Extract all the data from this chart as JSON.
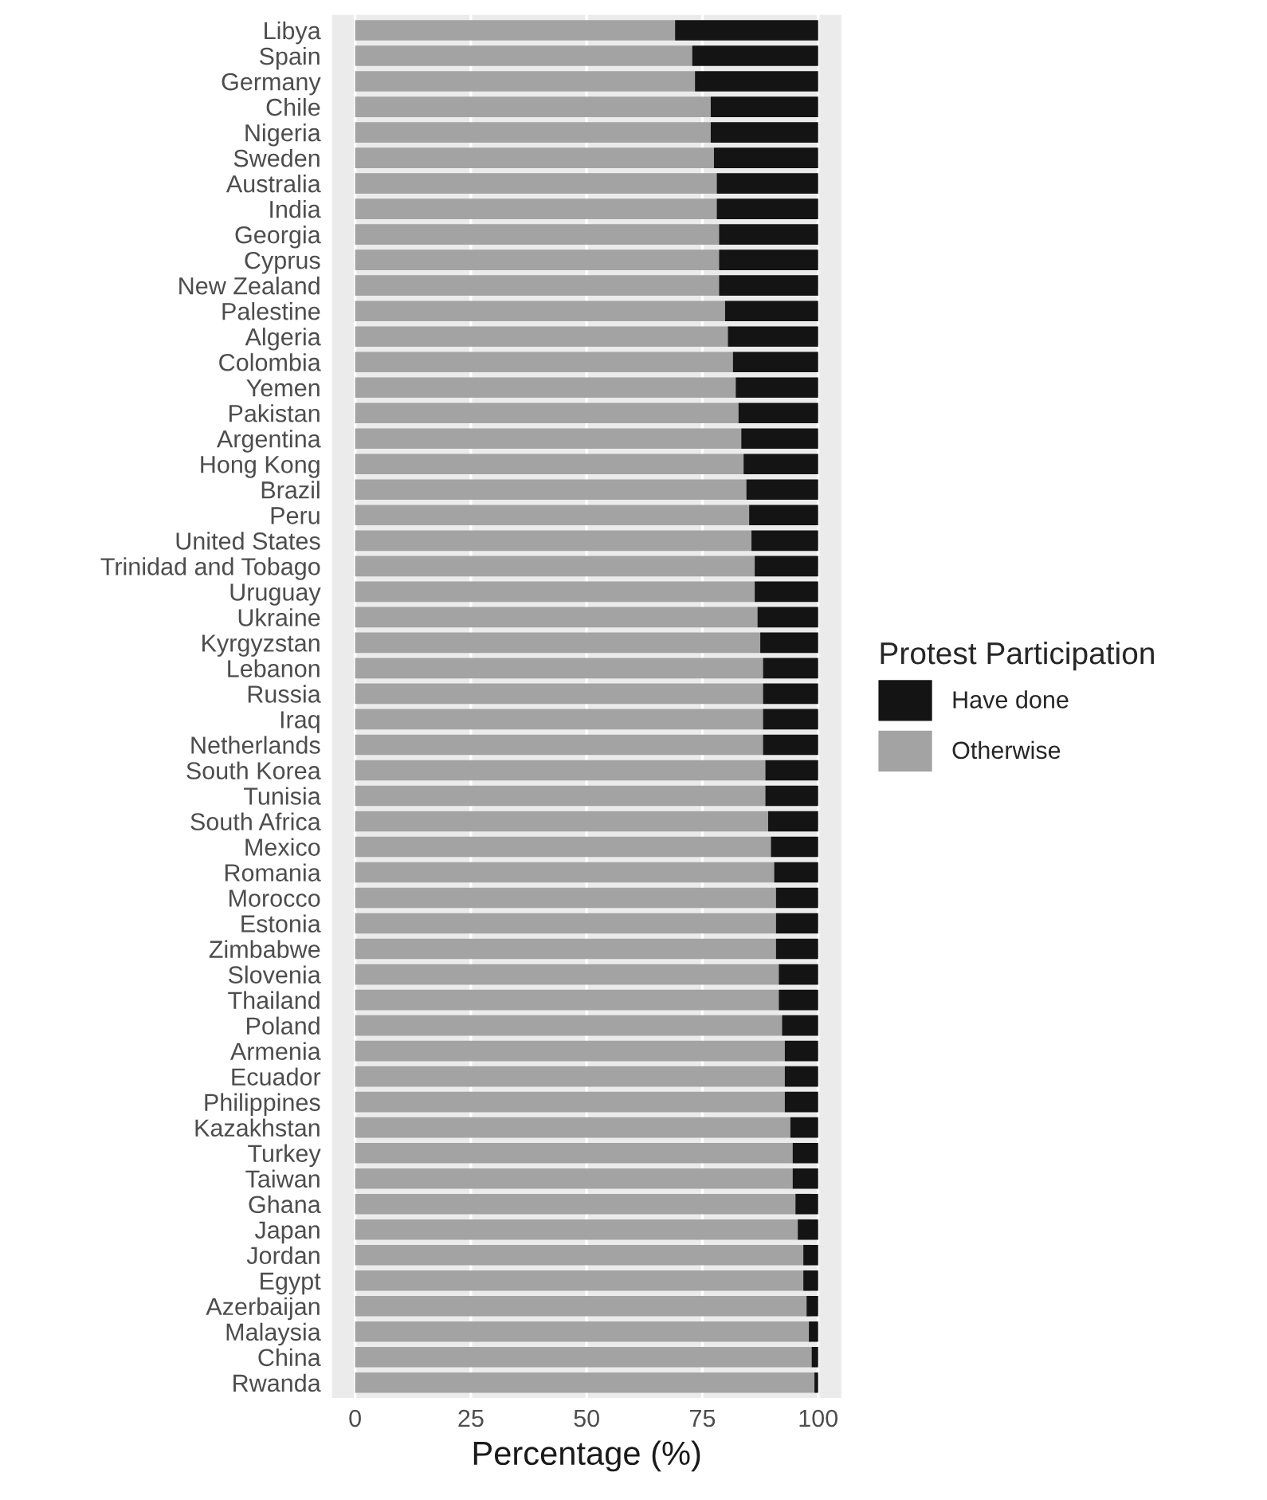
{
  "chart_data": {
    "type": "bar",
    "orientation": "horizontal",
    "stacked": true,
    "xlabel": "Percentage (%)",
    "legend_title": "Protest Participation",
    "legend": "right",
    "grid": "x",
    "categories": [
      "Libya",
      "Spain",
      "Germany",
      "Chile",
      "Nigeria",
      "Sweden",
      "Australia",
      "India",
      "Georgia",
      "Cyprus",
      "New Zealand",
      "Palestine",
      "Algeria",
      "Colombia",
      "Yemen",
      "Pakistan",
      "Argentina",
      "Hong Kong",
      "Brazil",
      "Peru",
      "United States",
      "Trinidad and Tobago",
      "Uruguay",
      "Ukraine",
      "Kyrgyzstan",
      "Lebanon",
      "Russia",
      "Iraq",
      "Netherlands",
      "South Korea",
      "Tunisia",
      "South Africa",
      "Mexico",
      "Romania",
      "Morocco",
      "Estonia",
      "Zimbabwe",
      "Slovenia",
      "Thailand",
      "Poland",
      "Armenia",
      "Ecuador",
      "Philippines",
      "Kazakhstan",
      "Turkey",
      "Taiwan",
      "Ghana",
      "Japan",
      "Jordan",
      "Egypt",
      "Azerbaijan",
      "Malaysia",
      "China",
      "Rwanda"
    ],
    "series": [
      {
        "name": "Otherwise",
        "color": "#a3a3a3",
        "values": [
          69.1,
          72.8,
          73.4,
          76.8,
          76.8,
          77.5,
          78.1,
          78.1,
          78.6,
          78.6,
          78.6,
          79.9,
          80.5,
          81.6,
          82.2,
          82.8,
          83.4,
          83.9,
          84.5,
          85.1,
          85.6,
          86.3,
          86.3,
          86.9,
          87.5,
          88.1,
          88.1,
          88.1,
          88.1,
          88.6,
          88.6,
          89.2,
          89.8,
          90.5,
          90.9,
          90.9,
          90.9,
          91.5,
          91.5,
          92.2,
          92.8,
          92.8,
          92.8,
          94.0,
          94.5,
          94.5,
          95.1,
          95.6,
          96.8,
          96.8,
          97.5,
          98.0,
          98.6,
          99.2
        ]
      },
      {
        "name": "Have done",
        "color": "#141414",
        "values": [
          30.9,
          27.2,
          26.6,
          23.2,
          23.2,
          22.5,
          21.9,
          21.9,
          21.4,
          21.4,
          21.4,
          20.1,
          19.5,
          18.4,
          17.8,
          17.2,
          16.6,
          16.1,
          15.5,
          14.9,
          14.4,
          13.7,
          13.7,
          13.1,
          12.5,
          11.9,
          11.9,
          11.9,
          11.9,
          11.4,
          11.4,
          10.8,
          10.2,
          9.5,
          9.1,
          9.1,
          9.1,
          8.5,
          8.5,
          7.8,
          7.2,
          7.2,
          7.2,
          6.0,
          5.5,
          5.5,
          4.9,
          4.4,
          3.2,
          3.2,
          2.5,
          2.0,
          1.4,
          0.8
        ]
      }
    ],
    "xlim": [
      -5,
      105
    ],
    "xticks": [
      0,
      25,
      50,
      75,
      100
    ]
  }
}
